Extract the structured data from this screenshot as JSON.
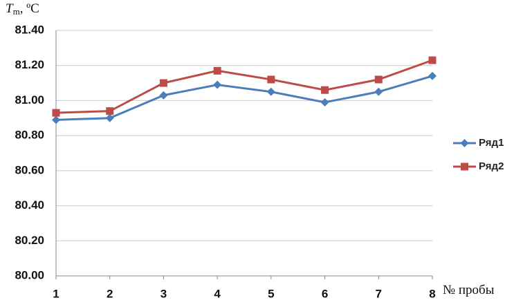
{
  "chart_data": {
    "type": "line",
    "y_label": {
      "symbol": "T",
      "subscript": "m",
      "unit": ", ºC"
    },
    "x_label": "№ пробы",
    "x": [
      1,
      2,
      3,
      4,
      5,
      6,
      7,
      8
    ],
    "xlim": [
      1,
      8
    ],
    "xticks": [
      1,
      2,
      3,
      4,
      5,
      6,
      7,
      8
    ],
    "ylim": [
      80,
      81.4
    ],
    "yticks": [
      {
        "value": 80,
        "label": "80.00"
      },
      {
        "value": 80.2,
        "label": "80.20"
      },
      {
        "value": 80.4,
        "label": "80.40"
      },
      {
        "value": 80.6,
        "label": "80.60"
      },
      {
        "value": 80.8,
        "label": "80.80"
      },
      {
        "value": 81,
        "label": "81.00"
      },
      {
        "value": 81.2,
        "label": "81.20"
      },
      {
        "value": 81.4,
        "label": "81.40"
      }
    ],
    "grid": true,
    "legend": "right",
    "series": [
      {
        "name": "Ряд1",
        "color": "#4a7ebb",
        "marker": "diamond",
        "values": [
          80.89,
          80.9,
          81.03,
          81.09,
          81.05,
          80.99,
          81.05,
          81.14
        ]
      },
      {
        "name": "Ряд2",
        "color": "#be4b48",
        "marker": "square",
        "values": [
          80.93,
          80.94,
          81.1,
          81.17,
          81.12,
          81.06,
          81.12,
          81.23
        ]
      }
    ]
  }
}
